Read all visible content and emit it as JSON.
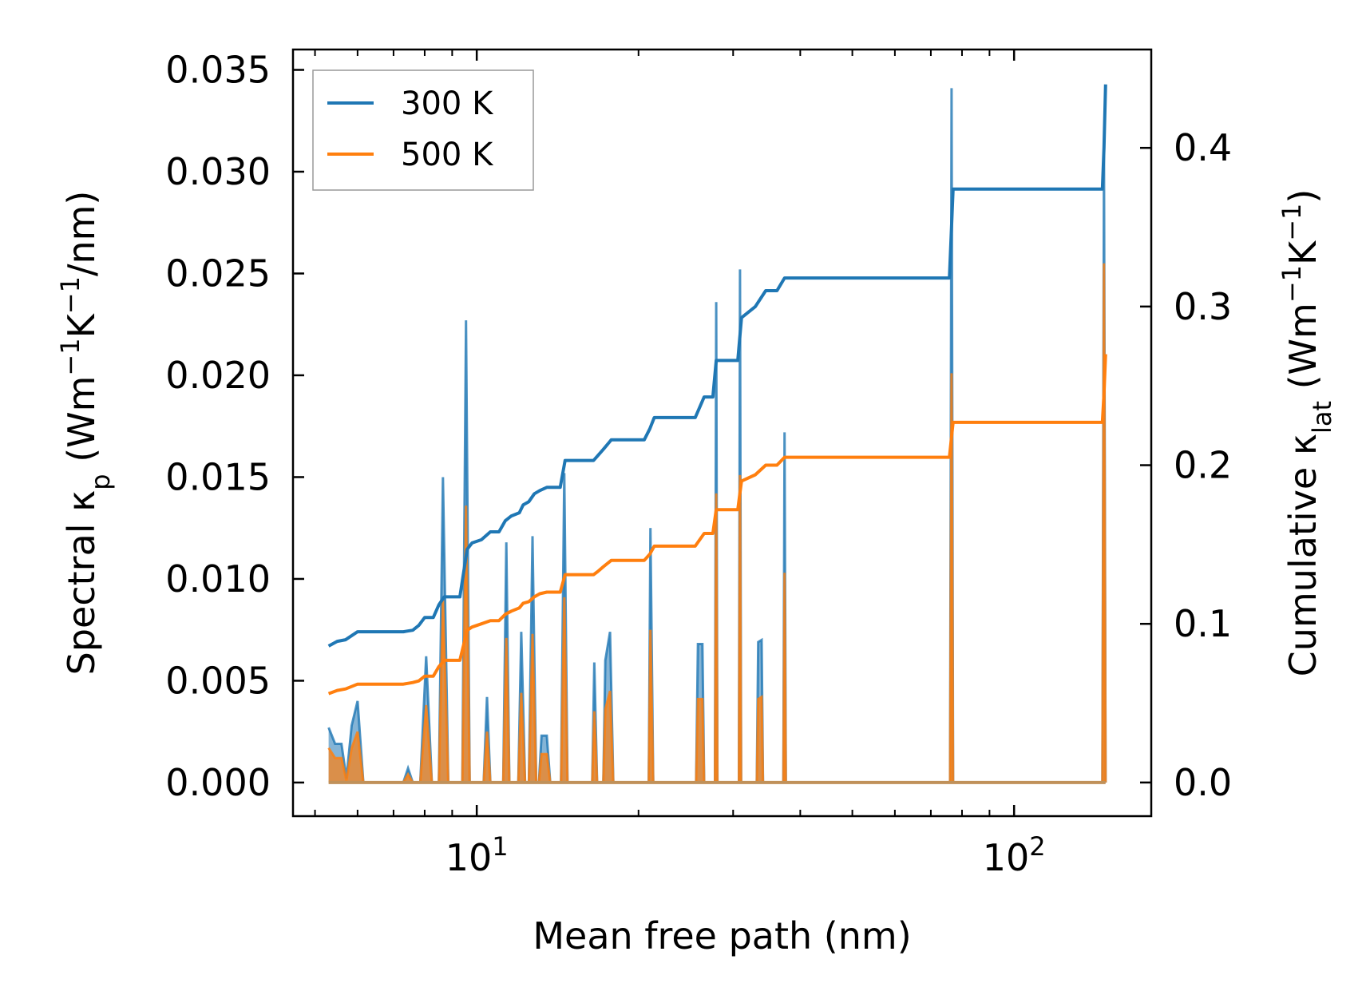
{
  "chart_data": {
    "type": "line",
    "xscale": "log",
    "xlabel": "Mean free path (nm)",
    "ylabel_left": {
      "pre": "Spectral κ",
      "sub": "p",
      "mid": " (Wm",
      "sup1": "−1",
      "mid2": "K",
      "sup2": "−1",
      "post": "/nm)"
    },
    "ylabel_right": {
      "pre": "Cumulative κ",
      "sub": "lat",
      "mid": " (Wm",
      "sup1": "−1",
      "mid2": "K",
      "sup2": "−1",
      "post": ")"
    },
    "xlim": [
      4.55,
      180
    ],
    "ylim_left": [
      -0.00165,
      0.036
    ],
    "ylim_right": [
      -0.0212,
      0.462
    ],
    "x_major_ticks": [
      10,
      100
    ],
    "x_tick_labels": [
      {
        "base": "10",
        "exp": "1"
      },
      {
        "base": "10",
        "exp": "2"
      }
    ],
    "yticks_left": [
      0.0,
      0.005,
      0.01,
      0.015,
      0.02,
      0.025,
      0.03,
      0.035
    ],
    "yticks_left_labels": [
      "0.000",
      "0.005",
      "0.010",
      "0.015",
      "0.020",
      "0.025",
      "0.030",
      "0.035"
    ],
    "yticks_right": [
      0.0,
      0.1,
      0.2,
      0.3,
      0.4
    ],
    "yticks_right_labels": [
      "0.0",
      "0.1",
      "0.2",
      "0.3",
      "0.4"
    ],
    "legend": {
      "position": "upper-left",
      "entries": [
        {
          "label": "300 K",
          "color": "#1f77b4"
        },
        {
          "label": "500 K",
          "color": "#ff7f0e"
        }
      ]
    },
    "spectral": [
      {
        "name": "300 K",
        "color": "#1f77b4",
        "points": [
          [
            5.3,
            0.0027
          ],
          [
            5.45,
            0.0019
          ],
          [
            5.6,
            0.0019
          ],
          [
            5.72,
            0.0002
          ],
          [
            5.85,
            0.0028
          ],
          [
            6.0,
            0.004
          ],
          [
            6.15,
            0.0
          ],
          [
            7.3,
            0.0
          ],
          [
            7.45,
            0.0007
          ],
          [
            7.6,
            0.0
          ],
          [
            7.85,
            0.0
          ],
          [
            8.05,
            0.0062
          ],
          [
            8.25,
            0.0
          ],
          [
            8.5,
            0.0
          ],
          [
            8.65,
            0.015
          ],
          [
            8.85,
            0.0
          ],
          [
            9.4,
            0.0
          ],
          [
            9.55,
            0.0227
          ],
          [
            9.7,
            0.0
          ],
          [
            10.3,
            0.0
          ],
          [
            10.45,
            0.0042
          ],
          [
            10.6,
            0.0
          ],
          [
            11.2,
            0.0
          ],
          [
            11.35,
            0.0118
          ],
          [
            11.5,
            0.0
          ],
          [
            11.95,
            0.0
          ],
          [
            12.1,
            0.0074
          ],
          [
            12.3,
            0.0
          ],
          [
            12.5,
            0.0
          ],
          [
            12.7,
            0.0121
          ],
          [
            12.9,
            0.0
          ],
          [
            13.05,
            0.0
          ],
          [
            13.2,
            0.0023
          ],
          [
            13.5,
            0.0023
          ],
          [
            13.7,
            0.0
          ],
          [
            14.35,
            0.0
          ],
          [
            14.55,
            0.0152
          ],
          [
            14.75,
            0.0
          ],
          [
            16.4,
            0.0
          ],
          [
            16.55,
            0.0059
          ],
          [
            16.75,
            0.0
          ],
          [
            17.2,
            0.0
          ],
          [
            17.35,
            0.006
          ],
          [
            17.7,
            0.0074
          ],
          [
            17.95,
            0.0
          ],
          [
            20.9,
            0.0
          ],
          [
            21.05,
            0.0125
          ],
          [
            21.3,
            0.0
          ],
          [
            25.6,
            0.0
          ],
          [
            25.8,
            0.0068
          ],
          [
            26.3,
            0.0068
          ],
          [
            26.5,
            0.0
          ],
          [
            27.75,
            0.0
          ],
          [
            27.9,
            0.0236
          ],
          [
            28.05,
            0.0
          ],
          [
            30.75,
            0.0
          ],
          [
            30.9,
            0.0252
          ],
          [
            31.05,
            0.0
          ],
          [
            33.2,
            0.0
          ],
          [
            33.4,
            0.0069
          ],
          [
            33.9,
            0.007
          ],
          [
            34.1,
            0.0
          ],
          [
            37.2,
            0.0
          ],
          [
            37.4,
            0.0172
          ],
          [
            37.6,
            0.0
          ],
          [
            76.0,
            0.0
          ],
          [
            76.5,
            0.0341
          ],
          [
            77.0,
            0.0
          ],
          [
            146.0,
            0.0
          ],
          [
            147.0,
            0.031
          ],
          [
            148.0,
            0.0
          ]
        ]
      },
      {
        "name": "500 K",
        "color": "#ff7f0e",
        "points": [
          [
            5.3,
            0.0017
          ],
          [
            5.45,
            0.0012
          ],
          [
            5.6,
            0.0012
          ],
          [
            5.72,
            0.0001
          ],
          [
            5.85,
            0.0017
          ],
          [
            6.0,
            0.0025
          ],
          [
            6.15,
            0.0
          ],
          [
            7.3,
            0.0
          ],
          [
            7.45,
            0.0004
          ],
          [
            7.6,
            0.0
          ],
          [
            7.85,
            0.0
          ],
          [
            8.05,
            0.0038
          ],
          [
            8.25,
            0.0
          ],
          [
            8.5,
            0.0
          ],
          [
            8.65,
            0.009
          ],
          [
            8.85,
            0.0
          ],
          [
            9.4,
            0.0
          ],
          [
            9.55,
            0.0136
          ],
          [
            9.7,
            0.0
          ],
          [
            10.3,
            0.0
          ],
          [
            10.45,
            0.0025
          ],
          [
            10.6,
            0.0
          ],
          [
            11.2,
            0.0
          ],
          [
            11.35,
            0.0071
          ],
          [
            11.5,
            0.0
          ],
          [
            11.95,
            0.0
          ],
          [
            12.1,
            0.0044
          ],
          [
            12.3,
            0.0
          ],
          [
            12.5,
            0.0
          ],
          [
            12.7,
            0.0073
          ],
          [
            12.9,
            0.0
          ],
          [
            13.05,
            0.0
          ],
          [
            13.2,
            0.0014
          ],
          [
            13.5,
            0.0014
          ],
          [
            13.7,
            0.0
          ],
          [
            14.35,
            0.0
          ],
          [
            14.55,
            0.0091
          ],
          [
            14.75,
            0.0
          ],
          [
            16.4,
            0.0
          ],
          [
            16.55,
            0.0035
          ],
          [
            16.75,
            0.0
          ],
          [
            17.2,
            0.0
          ],
          [
            17.35,
            0.0036
          ],
          [
            17.7,
            0.0045
          ],
          [
            17.95,
            0.0
          ],
          [
            20.9,
            0.0
          ],
          [
            21.05,
            0.0075
          ],
          [
            21.3,
            0.0
          ],
          [
            25.6,
            0.0
          ],
          [
            25.8,
            0.0041
          ],
          [
            26.3,
            0.0041
          ],
          [
            26.5,
            0.0
          ],
          [
            27.75,
            0.0
          ],
          [
            27.9,
            0.0142
          ],
          [
            28.05,
            0.0
          ],
          [
            30.75,
            0.0
          ],
          [
            30.9,
            0.0151
          ],
          [
            31.05,
            0.0
          ],
          [
            33.2,
            0.0
          ],
          [
            33.4,
            0.0041
          ],
          [
            33.9,
            0.0042
          ],
          [
            34.1,
            0.0
          ],
          [
            37.2,
            0.0
          ],
          [
            37.4,
            0.0103
          ],
          [
            37.6,
            0.0
          ],
          [
            76.0,
            0.0
          ],
          [
            76.5,
            0.0201
          ],
          [
            77.0,
            0.0
          ],
          [
            146.0,
            0.0
          ],
          [
            147.0,
            0.0255
          ],
          [
            148.0,
            0.0
          ]
        ]
      }
    ],
    "cumulative": [
      {
        "name": "300 K",
        "color": "#1f77b4",
        "points": [
          [
            5.3,
            0.086
          ],
          [
            5.5,
            0.089
          ],
          [
            5.7,
            0.09
          ],
          [
            6.0,
            0.095
          ],
          [
            7.3,
            0.095
          ],
          [
            7.6,
            0.096
          ],
          [
            7.8,
            0.099
          ],
          [
            8.0,
            0.104
          ],
          [
            8.3,
            0.104
          ],
          [
            8.5,
            0.112
          ],
          [
            8.7,
            0.117
          ],
          [
            9.3,
            0.117
          ],
          [
            9.6,
            0.147
          ],
          [
            9.8,
            0.151
          ],
          [
            10.2,
            0.153
          ],
          [
            10.6,
            0.158
          ],
          [
            11.0,
            0.158
          ],
          [
            11.3,
            0.165
          ],
          [
            11.6,
            0.168
          ],
          [
            12.0,
            0.17
          ],
          [
            12.2,
            0.175
          ],
          [
            12.5,
            0.177
          ],
          [
            12.8,
            0.182
          ],
          [
            13.1,
            0.184
          ],
          [
            13.5,
            0.186
          ],
          [
            14.3,
            0.186
          ],
          [
            14.6,
            0.203
          ],
          [
            14.9,
            0.203
          ],
          [
            16.5,
            0.203
          ],
          [
            16.8,
            0.206
          ],
          [
            17.2,
            0.21
          ],
          [
            17.8,
            0.216
          ],
          [
            20.5,
            0.216
          ],
          [
            21.0,
            0.223
          ],
          [
            21.4,
            0.23
          ],
          [
            25.5,
            0.23
          ],
          [
            26.5,
            0.243
          ],
          [
            27.5,
            0.243
          ],
          [
            27.9,
            0.266
          ],
          [
            30.6,
            0.266
          ],
          [
            31.1,
            0.293
          ],
          [
            33.0,
            0.3
          ],
          [
            34.5,
            0.31
          ],
          [
            36.2,
            0.31
          ],
          [
            37.4,
            0.318
          ],
          [
            75.8,
            0.318
          ],
          [
            77.0,
            0.374
          ],
          [
            146.0,
            0.374
          ],
          [
            147.0,
            0.4
          ],
          [
            148.0,
            0.44
          ]
        ]
      },
      {
        "name": "500 K",
        "color": "#ff7f0e",
        "points": [
          [
            5.3,
            0.056
          ],
          [
            5.5,
            0.058
          ],
          [
            5.7,
            0.059
          ],
          [
            6.0,
            0.062
          ],
          [
            7.3,
            0.062
          ],
          [
            7.6,
            0.063
          ],
          [
            7.8,
            0.064
          ],
          [
            8.0,
            0.067
          ],
          [
            8.3,
            0.067
          ],
          [
            8.5,
            0.073
          ],
          [
            8.7,
            0.077
          ],
          [
            9.3,
            0.077
          ],
          [
            9.6,
            0.096
          ],
          [
            9.8,
            0.098
          ],
          [
            10.2,
            0.1
          ],
          [
            10.6,
            0.102
          ],
          [
            11.0,
            0.102
          ],
          [
            11.3,
            0.106
          ],
          [
            11.6,
            0.108
          ],
          [
            12.0,
            0.11
          ],
          [
            12.2,
            0.113
          ],
          [
            12.5,
            0.114
          ],
          [
            12.8,
            0.117
          ],
          [
            13.1,
            0.119
          ],
          [
            13.5,
            0.12
          ],
          [
            14.3,
            0.12
          ],
          [
            14.6,
            0.131
          ],
          [
            14.9,
            0.131
          ],
          [
            16.5,
            0.131
          ],
          [
            16.8,
            0.133
          ],
          [
            17.2,
            0.136
          ],
          [
            17.8,
            0.14
          ],
          [
            20.5,
            0.14
          ],
          [
            21.0,
            0.144
          ],
          [
            21.4,
            0.149
          ],
          [
            25.5,
            0.149
          ],
          [
            26.5,
            0.157
          ],
          [
            27.5,
            0.157
          ],
          [
            27.9,
            0.172
          ],
          [
            30.6,
            0.172
          ],
          [
            31.1,
            0.19
          ],
          [
            33.0,
            0.194
          ],
          [
            34.5,
            0.2
          ],
          [
            36.2,
            0.2
          ],
          [
            37.4,
            0.205
          ],
          [
            75.8,
            0.205
          ],
          [
            77.0,
            0.227
          ],
          [
            146.0,
            0.227
          ],
          [
            147.0,
            0.245
          ],
          [
            148.0,
            0.27
          ]
        ]
      }
    ]
  }
}
